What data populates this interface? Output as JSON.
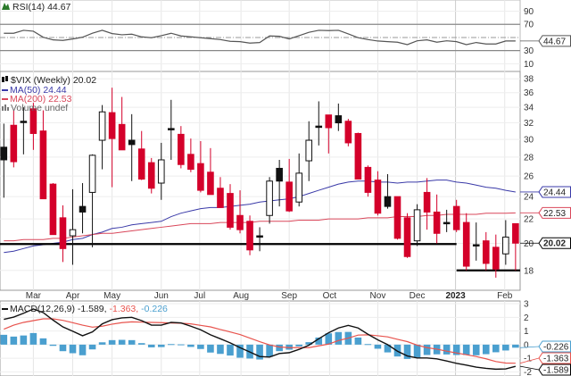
{
  "chart_data": [
    {
      "type": "line",
      "panel": "rsi",
      "legend": "RSI(14) 44.67",
      "last_value_tag": "44.67",
      "ylim": [
        0,
        105
      ],
      "yticks": [
        "90",
        "70",
        "30",
        "10"
      ],
      "ytick_values": [
        90,
        70,
        30,
        10
      ],
      "reference_lines": [
        70,
        30
      ],
      "midline": 50,
      "line_color": "#555555",
      "values": [
        56.4,
        56.4,
        60.9,
        59.5,
        50.4,
        46.3,
        45.5,
        47.7,
        50.4,
        56.4,
        60.9,
        55.9,
        54.1,
        55.0,
        50.9,
        49.6,
        52.7,
        56.4,
        52.3,
        50.9,
        49.6,
        48.2,
        46.8,
        44.1,
        43.6,
        41.4,
        42.3,
        52.3,
        51.8,
        47.7,
        52.7,
        57.8,
        60.9,
        60.5,
        60.9,
        55.4,
        49.6,
        46.8,
        44.6,
        43.6,
        42.8,
        39.1,
        44.9,
        46.3,
        42.8,
        44.9,
        43.6,
        39.1,
        42.3,
        40.1,
        40.1,
        44.6,
        44.67
      ]
    },
    {
      "type": "candlestick",
      "panel": "price",
      "legend": "$VIX (Weekly) 20.02",
      "legend_extra": "Volume undef",
      "scale": "log",
      "ylim": [
        16.66,
        39.1
      ],
      "yticks": [
        "38",
        "36",
        "34",
        "32",
        "30",
        "28",
        "26",
        "24",
        "22",
        "20",
        "18"
      ],
      "ytick_values": [
        38,
        36,
        34,
        32,
        30,
        28,
        26,
        24,
        22,
        20,
        18
      ],
      "grid": true,
      "x_labels": [
        {
          "label": "Mar",
          "week": 3
        },
        {
          "label": "Apr",
          "week": 7
        },
        {
          "label": "May",
          "week": 11
        },
        {
          "label": "Jun",
          "week": 16
        },
        {
          "label": "Jul",
          "week": 19.9
        },
        {
          "label": "Aug",
          "week": 24.1
        },
        {
          "label": "Sep",
          "week": 29
        },
        {
          "label": "Oct",
          "week": 33.1
        },
        {
          "label": "Nov",
          "week": 38
        },
        {
          "label": "Dec",
          "week": 42
        },
        {
          "label": "2023",
          "week": 45.9,
          "bold": true
        },
        {
          "label": "Feb",
          "week": 50.9
        }
      ],
      "up_color": "#111111",
      "down_color": "#d4002a",
      "open": [
        29.1,
        31.7,
        32.2,
        33.8,
        31.0,
        25.2,
        22.1,
        20.6,
        23.1,
        24.4,
        29.9,
        33.3,
        31.8,
        29.9,
        28.9,
        27.4,
        25.3,
        31.3,
        30.6,
        28.3,
        27.3,
        26.4,
        24.8,
        24.3,
        22.3,
        21.8,
        20.6,
        22.3,
        26.8,
        25.4,
        23.5,
        27.6,
        31.6,
        33.0,
        32.9,
        32.2,
        30.7,
        26.9,
        25.6,
        24.0,
        24.0,
        22.1,
        20.2,
        24.4,
        22.6,
        21.7,
        23.1,
        21.7,
        19.9,
        20.2,
        19.7,
        19.2,
        21.6
      ],
      "high": [
        31.9,
        33.7,
        34.0,
        34.6,
        33.6,
        25.3,
        23.2,
        24.7,
        25.3,
        28.3,
        34.3,
        36.7,
        35.4,
        33.1,
        31.0,
        27.9,
        29.6,
        35.0,
        31.6,
        30.1,
        29.8,
        29.0,
        25.9,
        25.2,
        24.6,
        22.3,
        21.3,
        25.9,
        27.7,
        27.8,
        28.4,
        32.2,
        34.8,
        33.0,
        34.5,
        32.5,
        30.8,
        27.1,
        26.5,
        26.2,
        24.0,
        22.5,
        23.3,
        25.8,
        24.2,
        22.8,
        23.7,
        22.5,
        21.7,
        20.9,
        20.7,
        21.9,
        21.6
      ],
      "low": [
        23.9,
        26.9,
        28.3,
        28.8,
        23.8,
        20.7,
        18.6,
        18.4,
        20.8,
        19.7,
        26.7,
        24.9,
        28.8,
        25.5,
        25.6,
        24.3,
        23.7,
        27.7,
        26.8,
        26.4,
        24.4,
        24.2,
        23.0,
        21.1,
        20.8,
        19.1,
        19.4,
        21.6,
        23.1,
        22.6,
        23.1,
        25.5,
        29.3,
        28.4,
        31.0,
        29.2,
        25.7,
        24.0,
        22.3,
        22.9,
        20.3,
        18.9,
        19.8,
        21.1,
        20.0,
        20.9,
        20.9,
        18.0,
        18.7,
        18.0,
        17.5,
        18.4,
        18.0
      ],
      "close": [
        27.7,
        27.5,
        32.2,
        30.7,
        23.8,
        20.7,
        19.6,
        21.1,
        22.6,
        28.2,
        33.4,
        30.1,
        28.8,
        29.4,
        25.7,
        24.8,
        27.7,
        31.3,
        27.2,
        26.7,
        24.6,
        24.2,
        23.0,
        21.3,
        21.1,
        19.5,
        20.6,
        25.5,
        25.5,
        22.7,
        26.3,
        29.9,
        31.6,
        31.4,
        32.0,
        29.6,
        25.7,
        24.4,
        22.5,
        23.1,
        20.4,
        19.0,
        22.8,
        22.6,
        20.8,
        21.7,
        21.1,
        18.3,
        19.9,
        18.5,
        18.1,
        20.5,
        20.02
      ],
      "series": [
        {
          "name": "MA(50)",
          "legend": "MA(50) 24.44",
          "tag": "24.44",
          "color": "#3a3aa8",
          "values": [
            19.3,
            19.4,
            19.6,
            19.8,
            19.9,
            20.0,
            20.1,
            20.3,
            20.4,
            20.7,
            20.9,
            21.2,
            21.3,
            21.5,
            21.6,
            21.7,
            21.8,
            22.2,
            22.5,
            22.7,
            22.9,
            23.0,
            23.0,
            23.1,
            23.2,
            23.3,
            23.5,
            23.6,
            23.7,
            23.8,
            24.0,
            24.3,
            24.6,
            24.9,
            25.2,
            25.4,
            25.5,
            25.5,
            25.4,
            25.4,
            25.3,
            25.4,
            25.4,
            25.5,
            25.6,
            25.6,
            25.4,
            25.3,
            25.1,
            24.9,
            24.8,
            24.6,
            24.44
          ]
        },
        {
          "name": "MA(200)",
          "legend": "MA(200) 22.53",
          "tag": "22.53",
          "color": "#d9475a",
          "values": [
            20.2,
            20.2,
            20.3,
            20.3,
            20.3,
            20.4,
            20.4,
            20.5,
            20.6,
            20.7,
            20.8,
            20.8,
            20.9,
            21.0,
            21.1,
            21.2,
            21.3,
            21.4,
            21.5,
            21.6,
            21.6,
            21.6,
            21.7,
            21.7,
            21.7,
            21.7,
            21.8,
            21.8,
            21.8,
            21.8,
            21.9,
            21.9,
            21.9,
            22.0,
            22.0,
            22.0,
            22.0,
            22.1,
            22.1,
            22.1,
            22.2,
            22.2,
            22.2,
            22.3,
            22.3,
            22.4,
            22.4,
            22.4,
            22.4,
            22.5,
            22.5,
            22.5,
            22.53
          ]
        }
      ],
      "last_close_tag": "20.02",
      "support_lines": [
        {
          "value": 19.95,
          "from_week": -0.4,
          "to_week": 46
        },
        {
          "value": 18.0,
          "from_week": 46,
          "to_week": 52.6
        }
      ]
    },
    {
      "type": "line+bar",
      "panel": "macd",
      "legend_name": "MACD(12,26,9)",
      "legend_macd": "-1.589,",
      "legend_signal": "-1.363,",
      "legend_hist": "-0.226",
      "ylim": [
        -2.3,
        3.2
      ],
      "yticks": [
        "3",
        "2",
        "1",
        "0",
        "-1",
        "-2"
      ],
      "ytick_values": [
        3,
        2,
        1,
        0,
        -1,
        -2
      ],
      "colors": {
        "macd": "#111111",
        "signal": "#e8544e",
        "histogram": "#4a9fcf"
      },
      "tags": {
        "histogram": "-0.226",
        "signal": "-1.363",
        "macd": "-1.589"
      },
      "macd": [
        1.85,
        2.02,
        2.3,
        2.61,
        2.35,
        1.8,
        1.3,
        0.98,
        0.65,
        0.93,
        1.52,
        1.83,
        1.96,
        2.0,
        1.76,
        1.43,
        1.43,
        1.63,
        1.59,
        1.35,
        1.09,
        0.72,
        0.43,
        0.13,
        -0.22,
        -0.54,
        -0.87,
        -0.91,
        -0.65,
        -0.59,
        -0.35,
        -0.04,
        0.43,
        0.87,
        1.22,
        1.41,
        1.22,
        0.76,
        0.35,
        0.0,
        -0.48,
        -0.83,
        -0.98,
        -0.98,
        -1.04,
        -1.2,
        -1.37,
        -1.5,
        -1.65,
        -1.74,
        -1.8,
        -1.78,
        -1.589
      ],
      "signal": [
        1.13,
        1.43,
        1.63,
        1.76,
        1.89,
        1.89,
        1.78,
        1.61,
        1.43,
        1.28,
        1.35,
        1.5,
        1.61,
        1.67,
        1.65,
        1.63,
        1.61,
        1.59,
        1.57,
        1.52,
        1.41,
        1.3,
        1.11,
        0.93,
        0.74,
        0.48,
        0.22,
        -0.02,
        -0.17,
        -0.22,
        -0.22,
        -0.22,
        -0.09,
        0.04,
        0.3,
        0.48,
        0.7,
        0.72,
        0.65,
        0.57,
        0.39,
        0.22,
        -0.04,
        -0.22,
        -0.33,
        -0.48,
        -0.61,
        -0.74,
        -0.87,
        -1.04,
        -1.24,
        -1.35,
        -1.363
      ]
    }
  ]
}
